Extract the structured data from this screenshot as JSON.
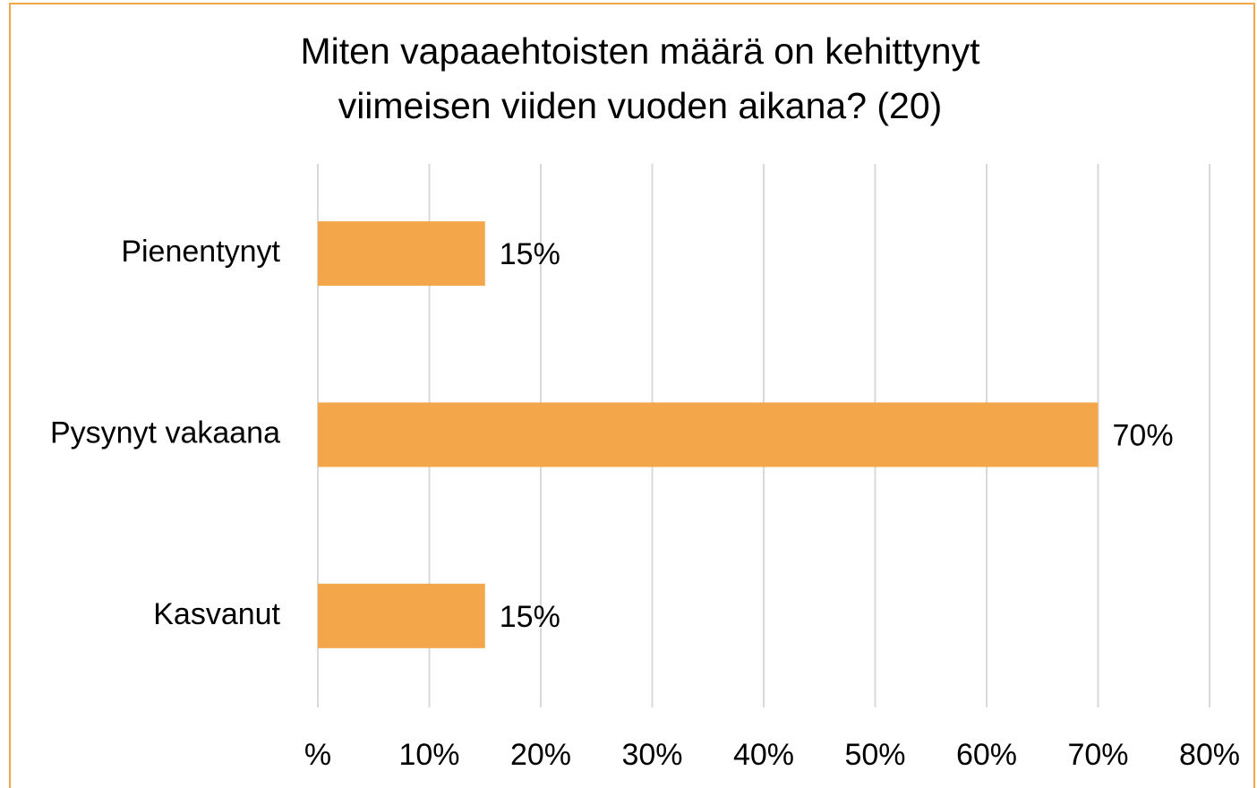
{
  "chart_data": {
    "type": "barh",
    "title": [
      "Miten vapaaehtoisten määrä on kehittynyt",
      "viimeisen viiden vuoden aikana? (20)"
    ],
    "categories": [
      "Pienentynyt",
      "Pysynyt vakaana",
      "Kasvanut"
    ],
    "values": [
      15,
      70,
      15
    ],
    "value_labels": [
      "15%",
      "70%",
      "15%"
    ],
    "color": "#f3a64a",
    "xlim": [
      0,
      80
    ],
    "xticks": [
      {
        "value": 0,
        "label": "%"
      },
      {
        "value": 10,
        "label": "10%"
      },
      {
        "value": 20,
        "label": "20%"
      },
      {
        "value": 30,
        "label": "30%"
      },
      {
        "value": 40,
        "label": "40%"
      },
      {
        "value": 50,
        "label": "50%"
      },
      {
        "value": 60,
        "label": "60%"
      },
      {
        "value": 70,
        "label": "70%"
      },
      {
        "value": 80,
        "label": "80%"
      }
    ],
    "grid": true
  }
}
